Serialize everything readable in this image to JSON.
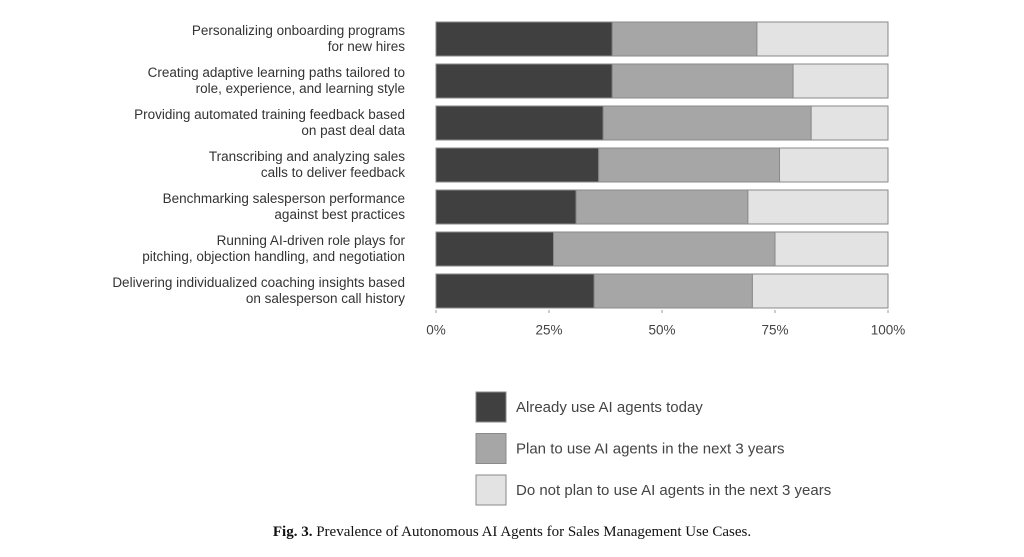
{
  "chart_data": {
    "type": "stacked-barh",
    "categories": [
      "Personalizing onboarding programs\nfor new hires",
      "Creating adaptive learning paths tailored to\nrole, experience, and learning style",
      "Providing automated training feedback based\non past deal data",
      "Transcribing and analyzing sales\ncalls to deliver feedback",
      "Benchmarking salesperson performance\nagainst best practices",
      "Running AI-driven role plays for\npitching, objection handling, and negotiation",
      "Delivering individualized coaching insights based\non salesperson call history"
    ],
    "series": [
      {
        "name": "Already use AI agents today",
        "color": "#404040",
        "values": [
          39,
          39,
          37,
          36,
          31,
          26,
          35
        ]
      },
      {
        "name": "Plan to use AI agents in the next 3 years",
        "color": "#a6a6a6",
        "values": [
          32,
          40,
          46,
          40,
          38,
          49,
          35
        ]
      },
      {
        "name": "Do not plan to use AI agents in the next 3 years",
        "color": "#e3e3e3",
        "values": [
          29,
          21,
          17,
          24,
          31,
          25,
          30
        ]
      }
    ],
    "xlim": [
      0,
      100
    ],
    "xticks": [
      {
        "value": 0,
        "label": "0%"
      },
      {
        "value": 25,
        "label": "25%"
      },
      {
        "value": 50,
        "label": "50%"
      },
      {
        "value": 75,
        "label": "75%"
      },
      {
        "value": 100,
        "label": "100%"
      }
    ],
    "caption_label": "Fig. 3.",
    "caption": "Prevalence of Autonomous AI Agents for Sales Management Use Cases."
  }
}
